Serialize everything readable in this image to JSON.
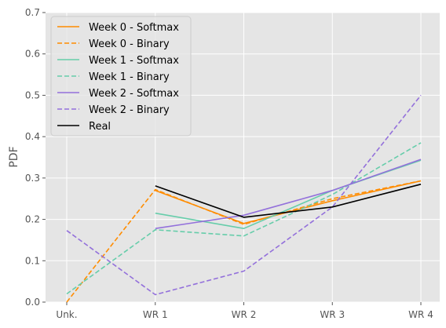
{
  "chart_data": {
    "type": "line",
    "categories": [
      "Unk.",
      "WR 1",
      "WR 2",
      "WR 3",
      "WR 4"
    ],
    "xlabel": "",
    "ylabel": "PDF",
    "ylim": [
      0,
      0.7
    ],
    "yticks": [
      "0.0",
      "0.1",
      "0.2",
      "0.3",
      "0.4",
      "0.5",
      "0.6",
      "0.7"
    ],
    "grid": true,
    "legend_position": "top-left",
    "series": [
      {
        "name": "Week 0 - Softmax",
        "color": "#ff8c00",
        "dash": "solid",
        "values": [
          null,
          0.27,
          0.19,
          0.245,
          0.293
        ]
      },
      {
        "name": "Week 0 - Binary",
        "color": "#ff8c00",
        "dash": "dashed",
        "values": [
          0.0,
          0.272,
          0.188,
          0.25,
          0.293
        ]
      },
      {
        "name": "Week 1 - Softmax",
        "color": "#66cdaa",
        "dash": "solid",
        "values": [
          null,
          0.215,
          0.178,
          0.27,
          0.343
        ]
      },
      {
        "name": "Week 1 - Binary",
        "color": "#66cdaa",
        "dash": "dashed",
        "values": [
          0.02,
          0.175,
          0.16,
          0.26,
          0.385
        ]
      },
      {
        "name": "Week 2 - Softmax",
        "color": "#9370db",
        "dash": "solid",
        "values": [
          null,
          0.178,
          0.21,
          0.27,
          0.345
        ]
      },
      {
        "name": "Week 2 - Binary",
        "color": "#9370db",
        "dash": "dashed",
        "values": [
          0.173,
          0.018,
          0.075,
          0.23,
          0.5
        ]
      },
      {
        "name": "Real",
        "color": "#000000",
        "dash": "solid",
        "values": [
          null,
          0.281,
          0.205,
          0.23,
          0.285
        ]
      }
    ]
  }
}
